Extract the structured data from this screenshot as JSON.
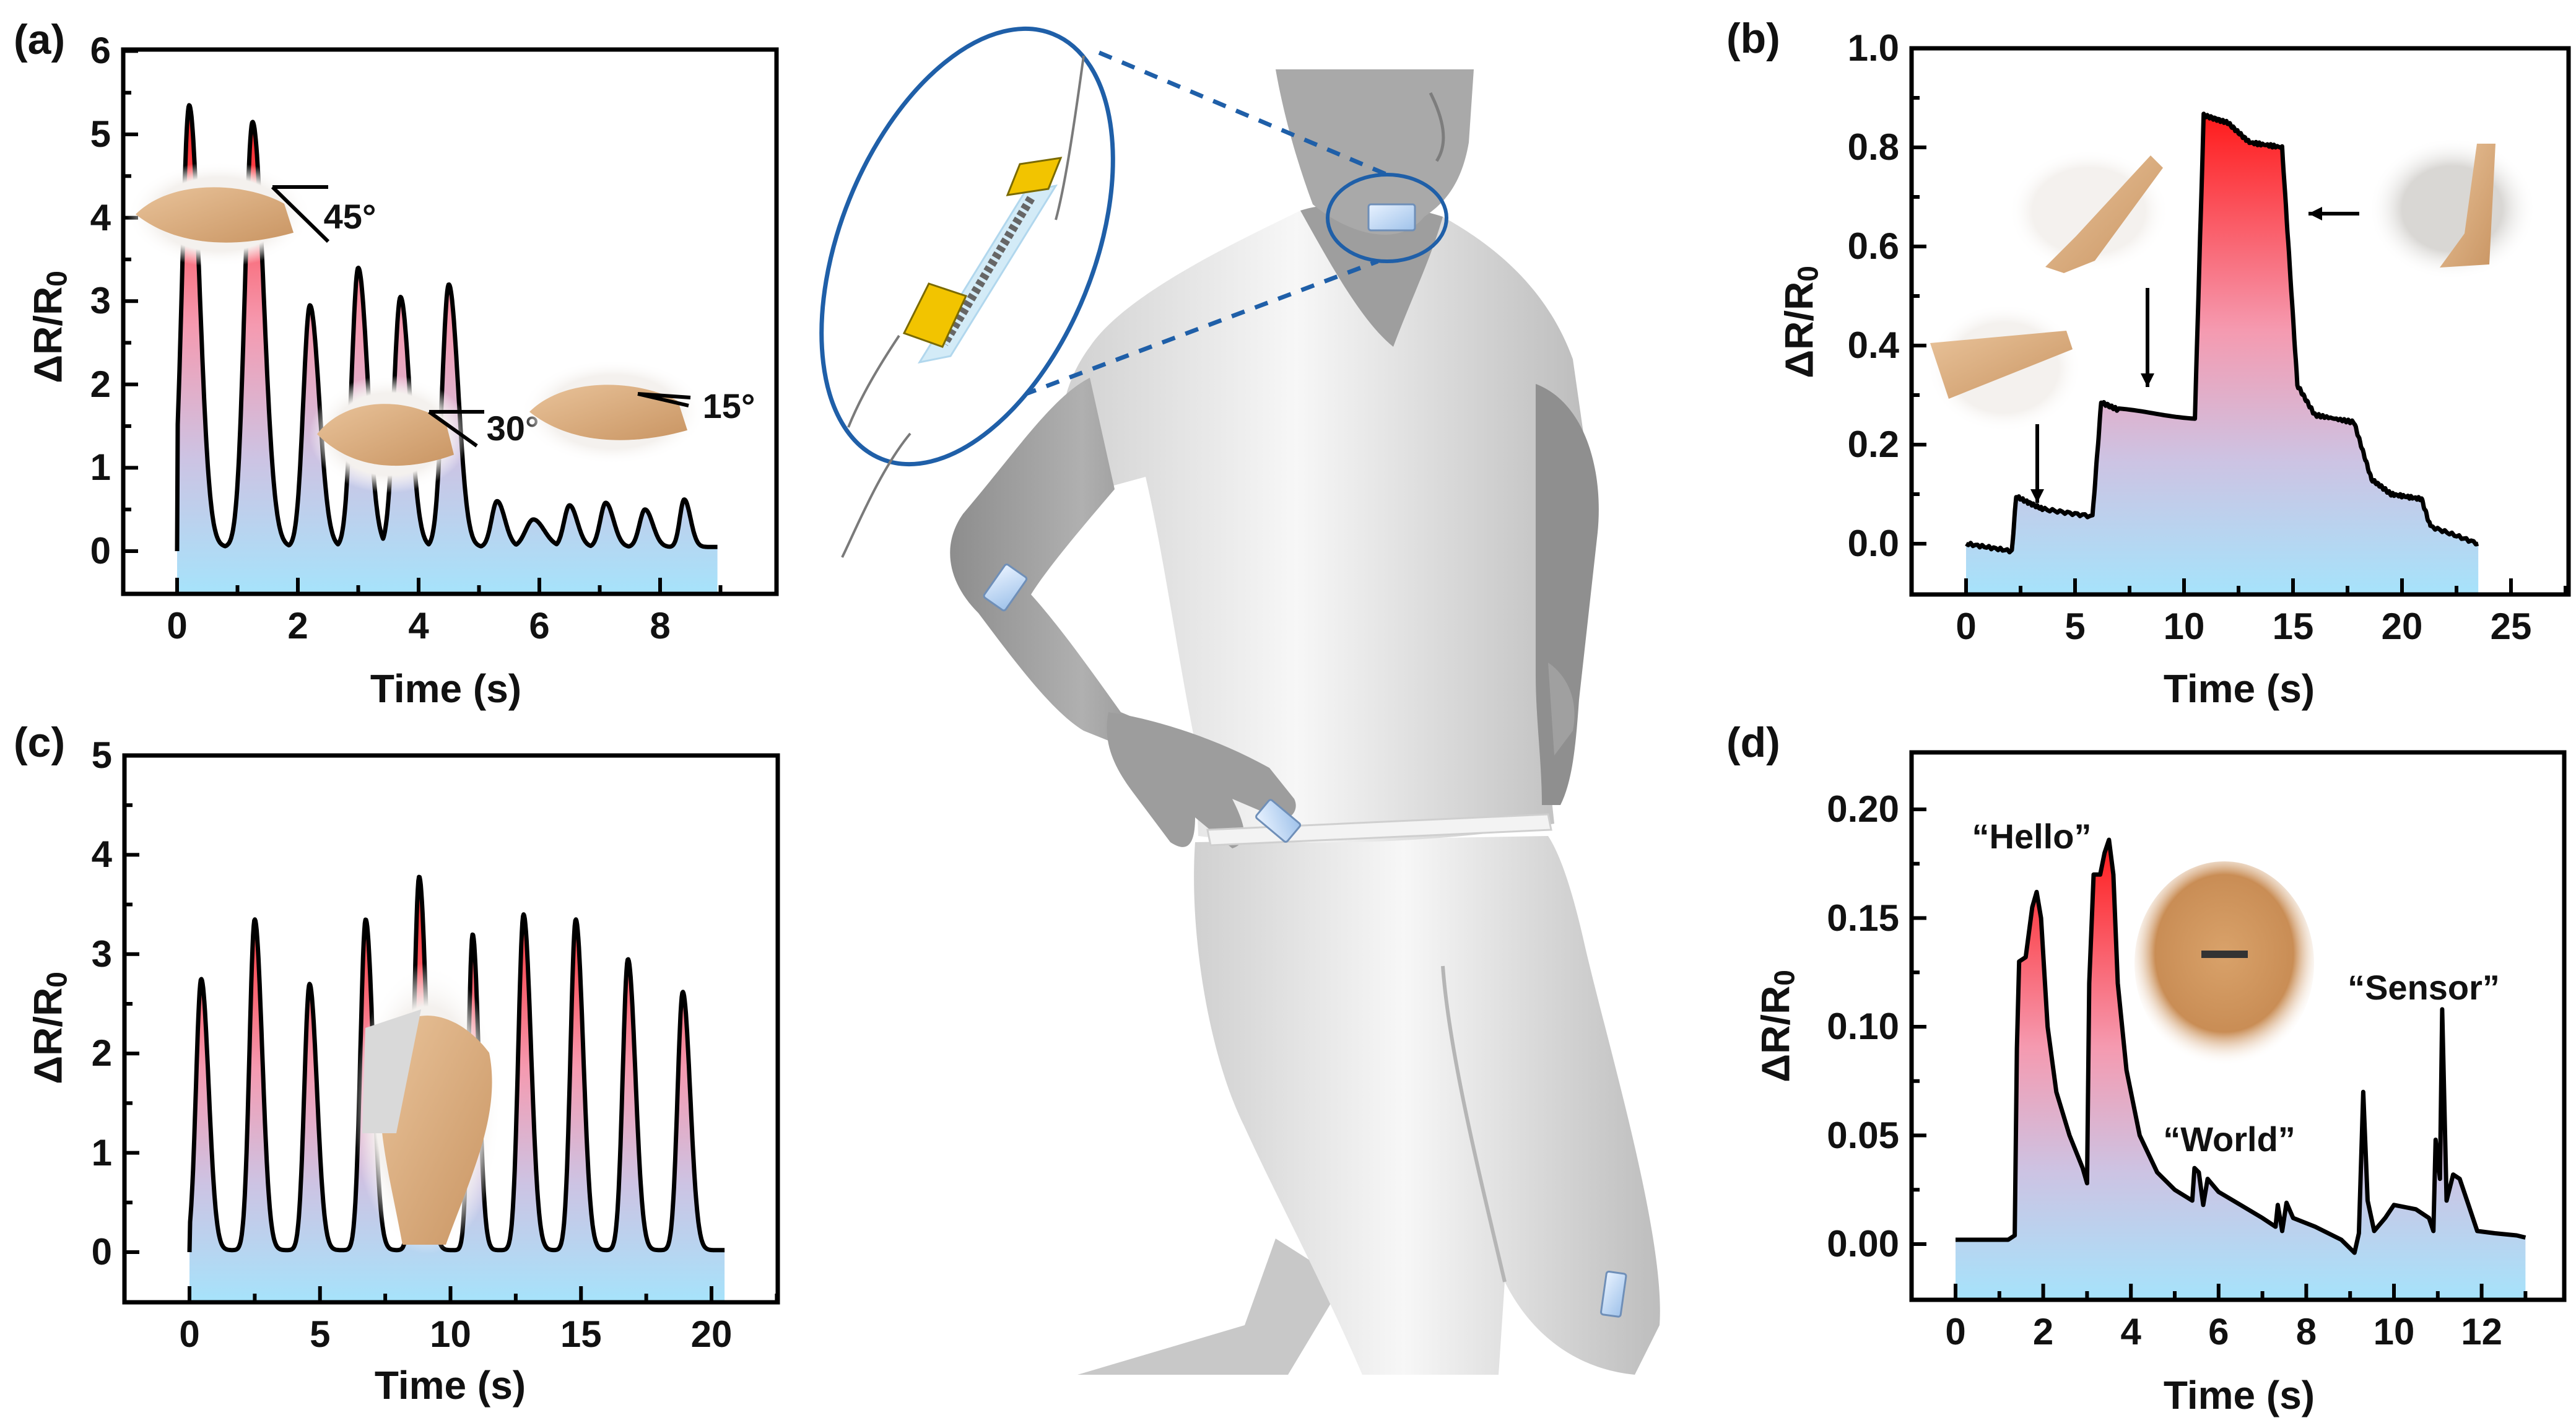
{
  "figure": {
    "panels": {
      "a": {
        "label": "(a)",
        "xlabel": "Time (s)",
        "ylabel_main": "ΔR/R",
        "ylabel_sub": "0",
        "annotations": [
          "45°",
          "30°",
          "15°"
        ],
        "photo_captions": [
          "finger-bend-45",
          "finger-bend-30",
          "finger-bend-15"
        ]
      },
      "b": {
        "label": "(b)",
        "xlabel": "Time (s)",
        "ylabel_main": "ΔR/R",
        "ylabel_sub": "0",
        "photo_captions": [
          "arm-straight",
          "arm-half-bent",
          "arm-fully-bent"
        ]
      },
      "c": {
        "label": "(c)",
        "xlabel": "Time (s)",
        "ylabel_main": "ΔR/R",
        "ylabel_sub": "0",
        "photo_captions": [
          "knee-bend"
        ]
      },
      "d": {
        "label": "(d)",
        "xlabel": "Time (s)",
        "ylabel_main": "ΔR/R",
        "ylabel_sub": "0",
        "annotations": [
          "“Hello”",
          "“World”",
          "“Sensor”"
        ],
        "photo_captions": [
          "neck-sensor"
        ]
      }
    },
    "center_illustration": {
      "description": "3D human model with wearable strain sensors on neck, elbow, finger and knee; zoom inset of sensor with gold electrodes",
      "sensor_locations": [
        "neck",
        "elbow",
        "finger",
        "knee"
      ],
      "inset_color": "#1f5fa8",
      "electrode_color": "#f2c400"
    },
    "colors": {
      "fill_low": "#a6e3fb",
      "fill_mid": "#d7bcd8",
      "fill_high": "#ff1a1a",
      "line": "#000000"
    }
  },
  "chart_data": [
    {
      "id": "a",
      "type": "area",
      "title": "",
      "xlabel": "Time (s)",
      "ylabel": "ΔR/R0",
      "xlim": [
        -0.9,
        9.9
      ],
      "ylim": [
        -0.5,
        6
      ],
      "xticks": [
        0,
        2,
        4,
        6,
        8
      ],
      "yticks": [
        0,
        1,
        2,
        3,
        4,
        5,
        6
      ],
      "baseline": 0.05,
      "x_end": 8.95,
      "end_value": 0.15,
      "peaks": [
        {
          "t": 0.2,
          "y": 5.35,
          "w": 0.13
        },
        {
          "t": 1.25,
          "y": 5.15,
          "w": 0.14
        },
        {
          "t": 2.2,
          "y": 2.95,
          "w": 0.12
        },
        {
          "t": 3.0,
          "y": 3.4,
          "w": 0.12
        },
        {
          "t": 3.7,
          "y": 3.05,
          "w": 0.12
        },
        {
          "t": 4.5,
          "y": 3.2,
          "w": 0.12
        },
        {
          "t": 5.3,
          "y": 0.6,
          "w": 0.1
        },
        {
          "t": 5.9,
          "y": 0.38,
          "w": 0.14
        },
        {
          "t": 6.5,
          "y": 0.55,
          "w": 0.1
        },
        {
          "t": 7.1,
          "y": 0.58,
          "w": 0.1
        },
        {
          "t": 7.75,
          "y": 0.5,
          "w": 0.1
        },
        {
          "t": 8.4,
          "y": 0.62,
          "w": 0.08
        }
      ],
      "annotations": [
        {
          "text": "45°",
          "t": 2.8,
          "y": 4.0
        },
        {
          "text": "30°",
          "t": 5.5,
          "y": 1.5
        },
        {
          "text": "15°",
          "t": 9.1,
          "y": 1.8
        }
      ]
    },
    {
      "id": "b",
      "type": "area",
      "xlabel": "Time (s)",
      "ylabel": "ΔR/R0",
      "xlim": [
        -2.5,
        27.5
      ],
      "ylim": [
        -0.1,
        1.0
      ],
      "xticks": [
        0,
        5,
        10,
        15,
        20,
        25
      ],
      "yticks": [
        0.0,
        0.2,
        0.4,
        0.6,
        0.8,
        1.0
      ],
      "steps": [
        {
          "t": 0,
          "y": 0.0
        },
        {
          "t": 2.1,
          "y": -0.015
        },
        {
          "t": 2.3,
          "y": 0.095
        },
        {
          "t": 3.5,
          "y": 0.07
        },
        {
          "t": 5.8,
          "y": 0.055
        },
        {
          "t": 6.2,
          "y": 0.285
        },
        {
          "t": 7.0,
          "y": 0.27
        },
        {
          "t": 10.5,
          "y": 0.255
        },
        {
          "t": 10.9,
          "y": 0.865
        },
        {
          "t": 12.0,
          "y": 0.85
        },
        {
          "t": 13.0,
          "y": 0.81
        },
        {
          "t": 14.5,
          "y": 0.8
        },
        {
          "t": 15.2,
          "y": 0.32
        },
        {
          "t": 16.0,
          "y": 0.26
        },
        {
          "t": 17.8,
          "y": 0.245
        },
        {
          "t": 18.6,
          "y": 0.13
        },
        {
          "t": 19.5,
          "y": 0.1
        },
        {
          "t": 20.9,
          "y": 0.09
        },
        {
          "t": 21.3,
          "y": 0.035
        },
        {
          "t": 23.5,
          "y": 0.0
        }
      ]
    },
    {
      "id": "c",
      "type": "area",
      "xlabel": "Time (s)",
      "ylabel": "ΔR/R0",
      "xlim": [
        -2.5,
        22.5
      ],
      "ylim": [
        -0.5,
        5
      ],
      "xticks": [
        0,
        5,
        10,
        15,
        20
      ],
      "yticks": [
        0,
        1,
        2,
        3,
        4,
        5
      ],
      "baseline": 0.02,
      "x_end": 20.5,
      "end_value": 0.02,
      "peaks": [
        {
          "t": 0.45,
          "y": 2.75,
          "w": 0.22
        },
        {
          "t": 2.5,
          "y": 3.35,
          "w": 0.22
        },
        {
          "t": 4.6,
          "y": 2.7,
          "w": 0.22
        },
        {
          "t": 6.75,
          "y": 3.35,
          "w": 0.22
        },
        {
          "t": 8.8,
          "y": 3.78,
          "w": 0.22
        },
        {
          "t": 10.85,
          "y": 3.2,
          "w": 0.18
        },
        {
          "t": 12.8,
          "y": 3.4,
          "w": 0.22
        },
        {
          "t": 14.8,
          "y": 3.35,
          "w": 0.22
        },
        {
          "t": 16.8,
          "y": 2.95,
          "w": 0.22
        },
        {
          "t": 18.9,
          "y": 2.62,
          "w": 0.22
        }
      ]
    },
    {
      "id": "d",
      "type": "area",
      "xlabel": "Time (s)",
      "ylabel": "ΔR/R0",
      "xlim": [
        -1.0,
        13.9
      ],
      "ylim": [
        -0.025,
        0.22
      ],
      "xticks": [
        0,
        2,
        4,
        6,
        8,
        10,
        12
      ],
      "yticks": [
        0.0,
        0.05,
        0.1,
        0.15,
        0.2
      ],
      "points": [
        [
          0,
          0.002
        ],
        [
          1.2,
          0.002
        ],
        [
          1.35,
          0.004
        ],
        [
          1.4,
          0.09
        ],
        [
          1.45,
          0.13
        ],
        [
          1.6,
          0.132
        ],
        [
          1.75,
          0.155
        ],
        [
          1.85,
          0.162
        ],
        [
          1.95,
          0.15
        ],
        [
          2.1,
          0.1
        ],
        [
          2.3,
          0.07
        ],
        [
          2.6,
          0.05
        ],
        [
          2.9,
          0.035
        ],
        [
          3.0,
          0.028
        ],
        [
          3.05,
          0.12
        ],
        [
          3.15,
          0.17
        ],
        [
          3.3,
          0.17
        ],
        [
          3.4,
          0.18
        ],
        [
          3.5,
          0.186
        ],
        [
          3.6,
          0.17
        ],
        [
          3.7,
          0.12
        ],
        [
          3.9,
          0.08
        ],
        [
          4.2,
          0.05
        ],
        [
          4.6,
          0.033
        ],
        [
          5.0,
          0.025
        ],
        [
          5.4,
          0.02
        ],
        [
          5.45,
          0.035
        ],
        [
          5.55,
          0.033
        ],
        [
          5.65,
          0.018
        ],
        [
          5.75,
          0.03
        ],
        [
          6.0,
          0.024
        ],
        [
          6.5,
          0.018
        ],
        [
          7.0,
          0.012
        ],
        [
          7.3,
          0.008
        ],
        [
          7.35,
          0.018
        ],
        [
          7.45,
          0.006
        ],
        [
          7.55,
          0.019
        ],
        [
          7.7,
          0.012
        ],
        [
          8.2,
          0.008
        ],
        [
          8.8,
          0.002
        ],
        [
          9.1,
          -0.004
        ],
        [
          9.2,
          0.005
        ],
        [
          9.3,
          0.07
        ],
        [
          9.4,
          0.02
        ],
        [
          9.55,
          0.006
        ],
        [
          9.8,
          0.012
        ],
        [
          10.0,
          0.018
        ],
        [
          10.5,
          0.016
        ],
        [
          10.8,
          0.012
        ],
        [
          10.9,
          0.006
        ],
        [
          10.95,
          0.048
        ],
        [
          11.05,
          0.03
        ],
        [
          11.1,
          0.108
        ],
        [
          11.2,
          0.02
        ],
        [
          11.35,
          0.032
        ],
        [
          11.5,
          0.03
        ],
        [
          11.7,
          0.018
        ],
        [
          11.9,
          0.006
        ],
        [
          12.3,
          0.005
        ],
        [
          12.8,
          0.004
        ],
        [
          13.0,
          0.003
        ]
      ],
      "annotations": [
        {
          "text": "“Hello”",
          "t": 1.8,
          "y": 0.19
        },
        {
          "text": "“World”",
          "t": 5.2,
          "y": 0.035
        },
        {
          "text": "“Sensor”",
          "t": 11.0,
          "y": 0.12
        }
      ]
    }
  ]
}
